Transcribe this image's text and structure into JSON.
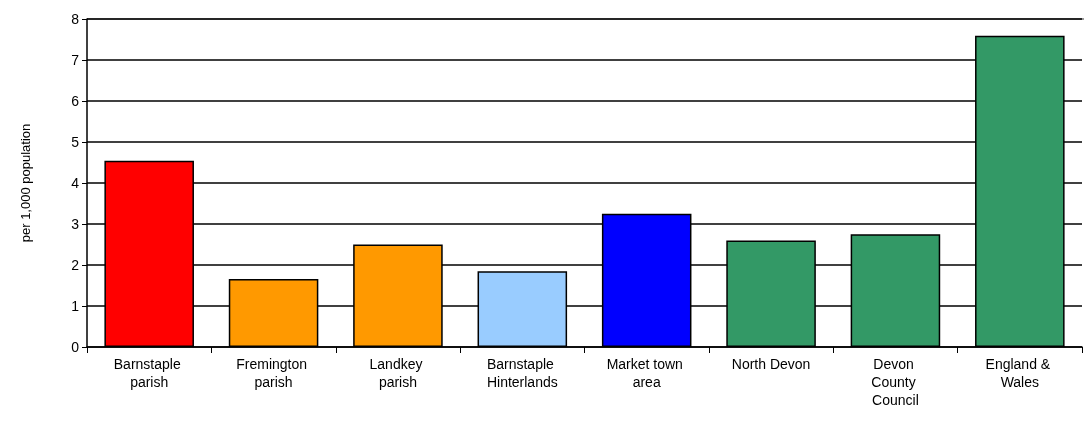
{
  "chart_data": {
    "type": "bar",
    "ylabel": "per 1,000 population",
    "categories": [
      "Barnstaple parish",
      "Fremington parish",
      "Landkey parish",
      "Barnstaple Hinterlands",
      "Market town area",
      "North Devon",
      "Devon County Council",
      "England & Wales"
    ],
    "values": [
      4.54,
      1.66,
      2.5,
      1.85,
      3.25,
      2.6,
      2.75,
      7.59
    ],
    "colors": [
      "#ff0000",
      "#ff9900",
      "#ff9900",
      "#99ccff",
      "#0000ff",
      "#339966",
      "#339966",
      "#339966"
    ],
    "ylim": [
      0,
      8
    ],
    "yticks": [
      0,
      1,
      2,
      3,
      4,
      5,
      6,
      7,
      8
    ],
    "grid": "y"
  }
}
